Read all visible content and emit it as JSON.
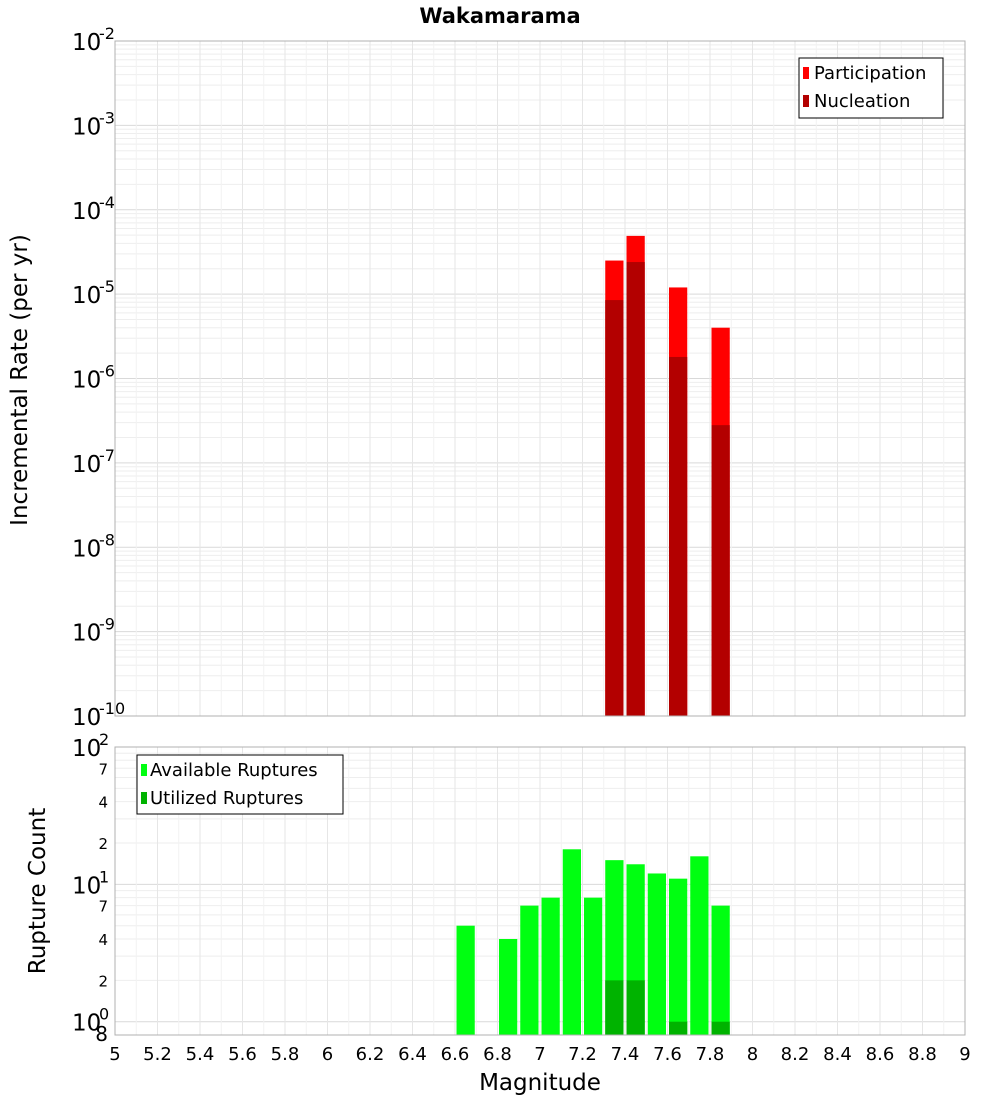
{
  "chart_data": [
    {
      "type": "bar",
      "title": "Wakamarama",
      "xlabel": "",
      "ylabel": "Incremental Rate (per yr)",
      "y_scale": "log",
      "ylim": [
        1e-10,
        0.01
      ],
      "y_tick_exponents": [
        "-2",
        "-3",
        "-4",
        "-5",
        "-6",
        "-7",
        "-8",
        "-9",
        "-10"
      ],
      "y_tick_base": "10",
      "legend": [
        "Participation",
        "Nucleation"
      ],
      "legend_position": "top-right",
      "colors": {
        "Participation": "#ff0000",
        "Nucleation": "#b30000"
      },
      "x": [
        7.35,
        7.45,
        7.65,
        7.85
      ],
      "series": [
        {
          "name": "Participation",
          "values": [
            2.5e-05,
            4.9e-05,
            1.2e-05,
            4e-06
          ]
        },
        {
          "name": "Nucleation",
          "values": [
            8.5e-06,
            2.4e-05,
            1.8e-06,
            2.8e-07
          ]
        }
      ]
    },
    {
      "type": "bar",
      "title": "",
      "xlabel": "Magnitude",
      "ylabel": "Rupture Count",
      "y_scale": "log",
      "ylim": [
        0.8,
        100
      ],
      "y_major_labels": [
        {
          "value": 100,
          "base": "10",
          "exp": "2"
        },
        {
          "value": 10,
          "base": "10",
          "exp": "1"
        },
        {
          "value": 1,
          "base": "10",
          "exp": "0"
        }
      ],
      "y_minor_labels": [
        "7",
        "4",
        "2",
        "7",
        "4",
        "2",
        "8"
      ],
      "y_minor_values": [
        70,
        40,
        20,
        7,
        4,
        2,
        0.8
      ],
      "legend": [
        "Available Ruptures",
        "Utilized Ruptures"
      ],
      "legend_position": "top-left",
      "colors": {
        "Available Ruptures": "#00ff11",
        "Utilized Ruptures": "#00b300"
      },
      "x": [
        6.65,
        6.85,
        6.95,
        7.05,
        7.15,
        7.25,
        7.35,
        7.45,
        7.55,
        7.65,
        7.75,
        7.85
      ],
      "series": [
        {
          "name": "Available Ruptures",
          "values": [
            5,
            4,
            7,
            8,
            18,
            8,
            15,
            14,
            12,
            11,
            16,
            7
          ]
        },
        {
          "name": "Utilized Ruptures",
          "values": [
            0,
            0,
            0,
            0,
            0,
            0,
            2,
            2,
            0,
            1,
            0,
            1
          ]
        }
      ],
      "xlim": [
        5,
        9
      ],
      "x_tick_labels": [
        "5",
        "5.2",
        "5.4",
        "5.6",
        "5.8",
        "6",
        "6.2",
        "6.4",
        "6.6",
        "6.8",
        "7",
        "7.2",
        "7.4",
        "7.6",
        "7.8",
        "8",
        "8.2",
        "8.4",
        "8.6",
        "8.8",
        "9"
      ]
    }
  ]
}
